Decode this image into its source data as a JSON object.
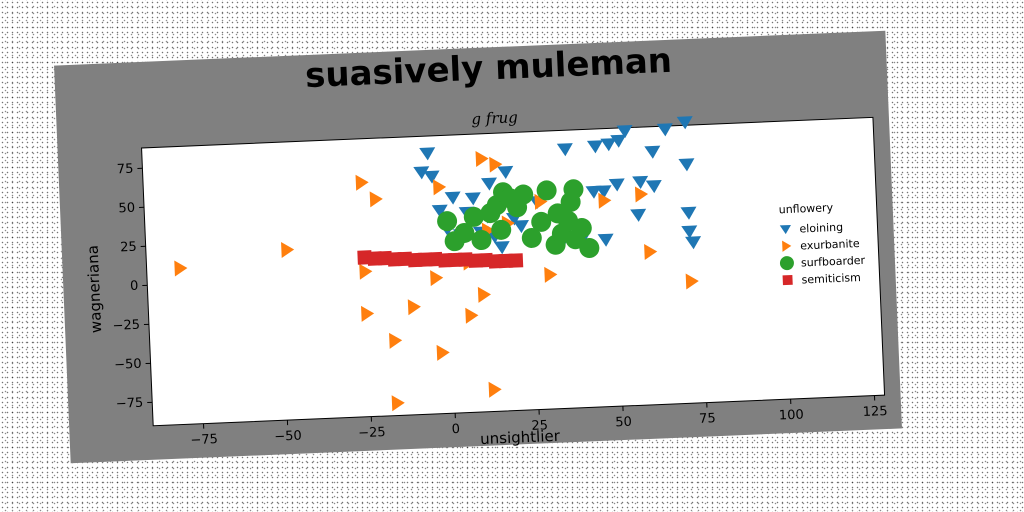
{
  "chart_data": {
    "type": "scatter",
    "title": "suasively muleman",
    "subtitle": "g frug",
    "xlabel": "unsightlier",
    "ylabel": "wagneriana",
    "xlim": [
      -90,
      128
    ],
    "ylim": [
      -90,
      88
    ],
    "xticks": [
      -75,
      -50,
      -25,
      0,
      25,
      50,
      75,
      100,
      125
    ],
    "yticks": [
      -75,
      -50,
      -25,
      0,
      25,
      50,
      75
    ],
    "grid": false,
    "legend_title": "unflowery",
    "legend_position": "right",
    "series": [
      {
        "name": "eloining",
        "marker": "triangle-down",
        "color": "#1f77b4",
        "points": [
          [
            -5,
            77
          ],
          [
            -7,
            65
          ],
          [
            -4,
            62
          ],
          [
            13,
            56
          ],
          [
            18,
            63
          ],
          [
            2,
            48
          ],
          [
            8,
            47
          ],
          [
            -2,
            40
          ],
          [
            6,
            38
          ],
          [
            12,
            35
          ],
          [
            20,
            33
          ],
          [
            27,
            43
          ],
          [
            0,
            28
          ],
          [
            4,
            24
          ],
          [
            10,
            25
          ],
          [
            14,
            22
          ],
          [
            22,
            28
          ],
          [
            16,
            15
          ],
          [
            36,
            76
          ],
          [
            45,
            77
          ],
          [
            49,
            78
          ],
          [
            52,
            80
          ],
          [
            54,
            86
          ],
          [
            66,
            86
          ],
          [
            72,
            90
          ],
          [
            62,
            72
          ],
          [
            72,
            63
          ],
          [
            44,
            48
          ],
          [
            47,
            48
          ],
          [
            51,
            52
          ],
          [
            58,
            53
          ],
          [
            62,
            50
          ],
          [
            57,
            32
          ],
          [
            35,
            20
          ],
          [
            40,
            18
          ],
          [
            47,
            17
          ],
          [
            72,
            32
          ],
          [
            72,
            20
          ],
          [
            73,
            13
          ]
        ]
      },
      {
        "name": "exurbanite",
        "marker": "triangle-right",
        "color": "#ff7f0e",
        "points": [
          [
            -80,
            10
          ],
          [
            -48,
            19
          ],
          [
            -25,
            60
          ],
          [
            -21,
            49
          ],
          [
            -25,
            3
          ],
          [
            -25,
            -24
          ],
          [
            -17,
            -42
          ],
          [
            -11,
            -21
          ],
          [
            -4,
            -3
          ],
          [
            -3,
            -51
          ],
          [
            -2,
            55
          ],
          [
            11,
            72
          ],
          [
            15,
            68
          ],
          [
            12,
            26
          ],
          [
            18,
            30
          ],
          [
            28,
            43
          ],
          [
            10,
            -15
          ],
          [
            6,
            6
          ],
          [
            6,
            -28
          ],
          [
            12,
            -76
          ],
          [
            -17,
            -82
          ],
          [
            30,
            -4
          ],
          [
            47,
            42
          ],
          [
            58,
            45
          ],
          [
            60,
            8
          ],
          [
            72,
            -12
          ]
        ]
      },
      {
        "name": "surfboarder",
        "marker": "circle",
        "color": "#2ca02c",
        "points": [
          [
            0,
            33
          ],
          [
            2,
            20
          ],
          [
            5,
            25
          ],
          [
            8,
            35
          ],
          [
            10,
            20
          ],
          [
            13,
            37
          ],
          [
            15,
            42
          ],
          [
            16,
            26
          ],
          [
            17,
            50
          ],
          [
            19,
            46
          ],
          [
            21,
            40
          ],
          [
            23,
            48
          ],
          [
            25,
            20
          ],
          [
            28,
            30
          ],
          [
            30,
            50
          ],
          [
            32,
            15
          ],
          [
            33,
            35
          ],
          [
            34,
            22
          ],
          [
            36,
            30
          ],
          [
            37,
            42
          ],
          [
            38,
            50
          ],
          [
            38,
            18
          ],
          [
            40,
            25
          ],
          [
            42,
            12
          ]
        ]
      },
      {
        "name": "semiticism",
        "marker": "square",
        "color": "#d62728",
        "points": [
          [
            -25,
            12
          ],
          [
            -22,
            11
          ],
          [
            -19,
            11
          ],
          [
            -16,
            10
          ],
          [
            -13,
            10
          ],
          [
            -10,
            9
          ],
          [
            -7,
            9
          ],
          [
            -4,
            9
          ],
          [
            -1,
            8
          ],
          [
            2,
            8
          ],
          [
            5,
            8
          ],
          [
            8,
            7
          ],
          [
            11,
            7
          ],
          [
            14,
            6
          ],
          [
            17,
            6
          ],
          [
            20,
            6
          ]
        ]
      }
    ]
  }
}
